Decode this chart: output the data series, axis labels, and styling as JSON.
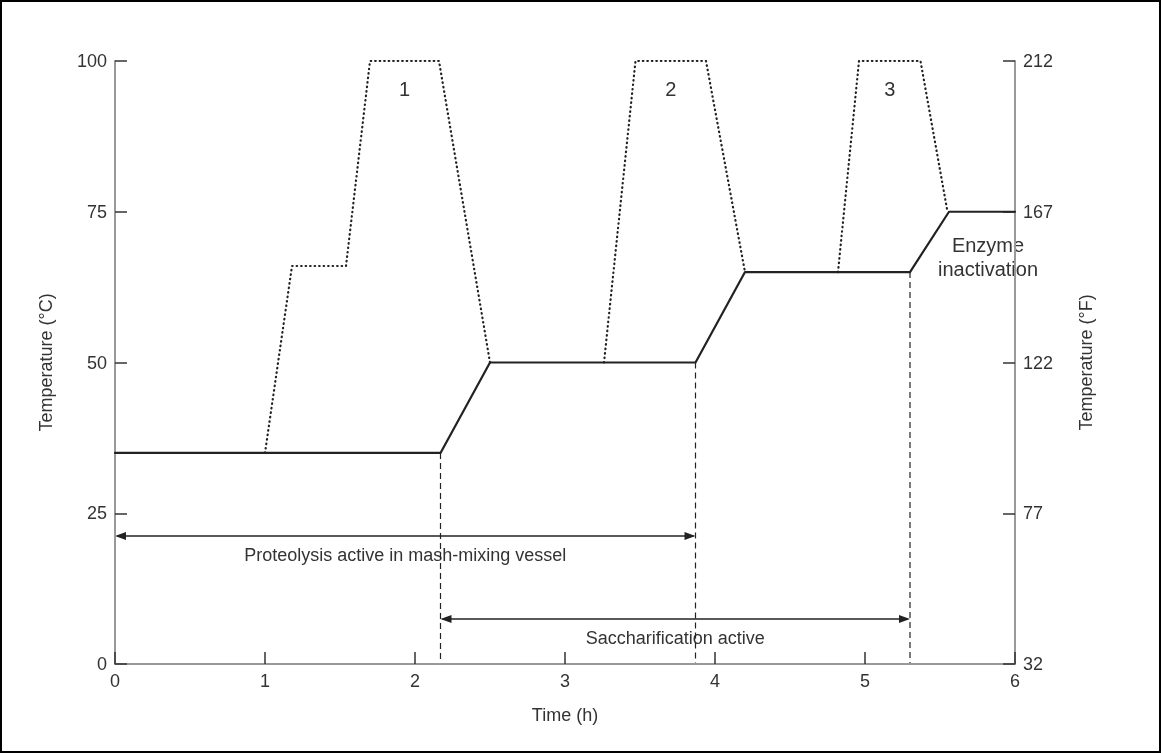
{
  "chart_data": {
    "type": "line",
    "xlabel": "Time (h)",
    "ylabel": "Temperature (°C)",
    "y2label": "Temperature (°F)",
    "xlim": [
      0,
      6
    ],
    "xticks": [
      0,
      1,
      2,
      3,
      4,
      5,
      6
    ],
    "ylim": [
      0,
      100
    ],
    "yticks": [
      0,
      25,
      50,
      75,
      100
    ],
    "y2lim": [
      32,
      212
    ],
    "y2ticks": [
      32,
      77,
      122,
      167,
      212
    ],
    "grid": false,
    "marker": "none",
    "series": [
      {
        "color": "#222222",
        "line_style": "solid",
        "x": [
          0,
          2.17,
          2.5,
          3.87,
          4.2,
          5.3,
          5.56,
          6
        ],
        "values": [
          35,
          35,
          50,
          50,
          65,
          65,
          75,
          75
        ]
      },
      {
        "color": "#222222",
        "line_style": "dotted",
        "x": [
          1.0,
          1.18,
          1.54,
          1.7,
          2.16,
          2.5,
          3.0,
          3.26,
          3.47,
          3.94,
          4.2,
          4.5,
          4.82,
          4.96,
          5.37,
          5.55
        ],
        "values": [
          35,
          66,
          66,
          100,
          100,
          50,
          null,
          50,
          100,
          100,
          65,
          null,
          65,
          100,
          100,
          75
        ]
      }
    ],
    "ref_lines": [
      {
        "axis": "x",
        "value": 2.17,
        "line_style": "dashed"
      },
      {
        "axis": "x",
        "value": 3.87,
        "line_style": "dashed"
      },
      {
        "axis": "x",
        "value": 5.3,
        "line_style": "dashed"
      }
    ],
    "annotations": [
      "1",
      "2",
      "3",
      "Enzyme inactivation",
      "Proteolysis active in mash-mixing vessel",
      "Saccharification active"
    ]
  }
}
